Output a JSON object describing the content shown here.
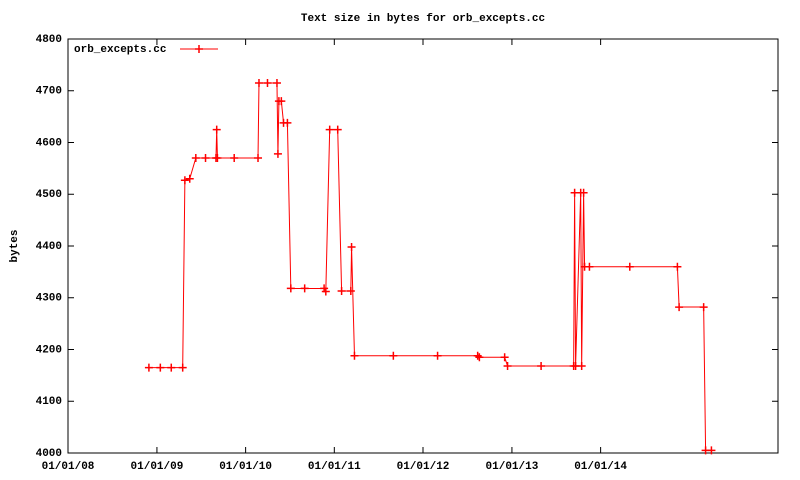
{
  "chart_data": {
    "type": "line",
    "title": "Text size in bytes for orb_excepts.cc",
    "y_label": "bytes",
    "legend": "top-left",
    "x": [
      "2008-11-29",
      "2009-01-15",
      "2009-03-01",
      "2009-04-17",
      "2009-04-26",
      "2009-05-16",
      "2009-06-10",
      "2009-07-20",
      "2009-09-01",
      "2009-09-04",
      "2009-09-07",
      "2009-11-15",
      "2010-02-21",
      "2010-02-25",
      "2010-04-01",
      "2010-05-10",
      "2010-05-14",
      "2010-05-18",
      "2010-05-28",
      "2010-06-06",
      "2010-06-22",
      "2010-07-06",
      "2010-09-01",
      "2010-11-20",
      "2010-11-27",
      "2010-12-13",
      "2011-01-15",
      "2011-01-31",
      "2011-03-10",
      "2011-03-13",
      "2011-03-25",
      "2011-09-01",
      "2012-03-01",
      "2012-08-13",
      "2012-08-20",
      "2012-12-02",
      "2012-12-14",
      "2013-05-01",
      "2013-09-12",
      "2013-09-16",
      "2013-09-20",
      "2013-10-11",
      "2013-10-15",
      "2013-10-23",
      "2013-10-27",
      "2013-11-16",
      "2014-05-01",
      "2014-11-13",
      "2014-11-20",
      "2015-03-01",
      "2015-03-09",
      "2015-04-02"
    ],
    "series": [
      {
        "name": "orb_excepts.cc",
        "color": "#ff0000",
        "values": [
          4165,
          4165,
          4165,
          4165,
          4527,
          4530,
          4570,
          4570,
          4570,
          4625,
          4570,
          4570,
          4570,
          4715,
          4715,
          4715,
          4578,
          4680,
          4680,
          4638,
          4638,
          4318,
          4318,
          4318,
          4312,
          4625,
          4625,
          4313,
          4313,
          4398,
          4188,
          4188,
          4188,
          4188,
          4185,
          4185,
          4168,
          4168,
          4168,
          4503,
          4168,
          4503,
          4168,
          4503,
          4360,
          4360,
          4360,
          4360,
          4282,
          4282,
          4005,
          4005
        ]
      }
    ],
    "xlim": [
      "2008-01-01",
      "2016-01-01"
    ],
    "xticks": [
      {
        "value": "2008-01-01",
        "label": "01/01/08"
      },
      {
        "value": "2009-01-01",
        "label": "01/01/09"
      },
      {
        "value": "2010-01-01",
        "label": "01/01/10"
      },
      {
        "value": "2011-01-01",
        "label": "01/01/11"
      },
      {
        "value": "2012-01-01",
        "label": "01/01/12"
      },
      {
        "value": "2013-01-01",
        "label": "01/01/13"
      },
      {
        "value": "2014-01-01",
        "label": "01/01/14"
      }
    ],
    "ylim": [
      4000,
      4800
    ],
    "yticks": [
      4000,
      4100,
      4200,
      4300,
      4400,
      4500,
      4600,
      4700,
      4800
    ]
  }
}
